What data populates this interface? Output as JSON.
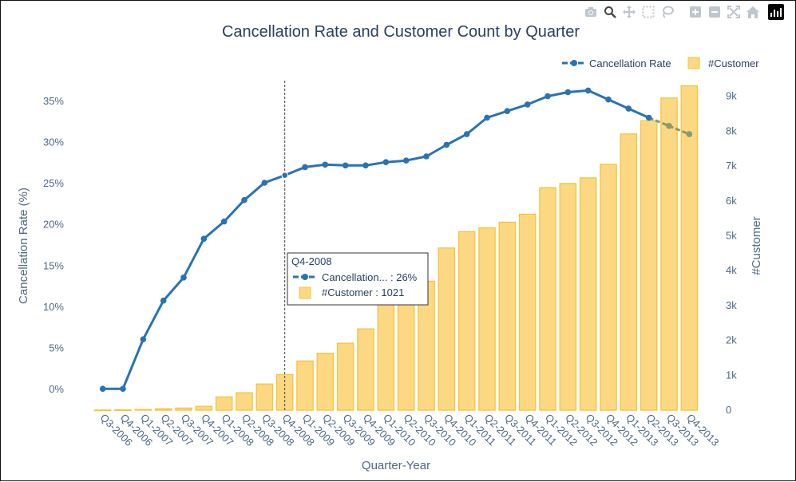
{
  "modebar": {
    "icons": [
      "camera-icon",
      "zoom-icon",
      "pan-icon",
      "box-select-icon",
      "lasso-icon",
      "zoom-in-icon",
      "zoom-out-icon",
      "autoscale-icon",
      "reset-axes-icon",
      "plotly-logo-icon"
    ]
  },
  "colors": {
    "line": "#2a72b5",
    "line_faded": "#8a9a6a",
    "bar_fill": "#fdd882",
    "bar_stroke": "#f5c43c",
    "text": "#2a3f5f",
    "axis_text": "#506784"
  },
  "chart_data": {
    "type": "bar",
    "title": "Cancellation Rate and Customer Count by Quarter",
    "xlabel": "Quarter-Year",
    "ylabel": "Cancellation Rate (%)",
    "y2label": "#Customer",
    "legend_position": "top-right",
    "grid": false,
    "categories": [
      "Q3-2006",
      "Q4-2006",
      "Q1-2007",
      "Q2-2007",
      "Q3-2007",
      "Q4-2007",
      "Q1-2008",
      "Q2-2008",
      "Q3-2008",
      "Q4-2008",
      "Q1-2009",
      "Q2-2009",
      "Q3-2009",
      "Q4-2009",
      "Q1-2010",
      "Q2-2010",
      "Q3-2010",
      "Q4-2010",
      "Q1-2011",
      "Q2-2011",
      "Q3-2011",
      "Q4-2011",
      "Q1-2012",
      "Q2-2012",
      "Q3-2012",
      "Q4-2012",
      "Q1-2013",
      "Q2-2013",
      "Q3-2013",
      "Q4-2013"
    ],
    "y_ticks": [
      "0%",
      "5%",
      "10%",
      "15%",
      "20%",
      "25%",
      "30%",
      "35%"
    ],
    "y_tick_values": [
      0,
      5,
      10,
      15,
      20,
      25,
      30,
      35
    ],
    "y2_ticks": [
      "0",
      "1k",
      "2k",
      "3k",
      "4k",
      "5k",
      "6k",
      "7k",
      "8k",
      "9k"
    ],
    "y2_tick_values": [
      0,
      1000,
      2000,
      3000,
      4000,
      5000,
      6000,
      7000,
      8000,
      9000
    ],
    "ylim": [
      -2.5,
      37.5
    ],
    "y2lim": [
      0,
      9450
    ],
    "series": [
      {
        "name": "Cancellation Rate",
        "type": "line",
        "axis": "left",
        "values": [
          0.1,
          0.1,
          6.1,
          10.8,
          13.6,
          18.3,
          20.4,
          23.0,
          25.1,
          26.0,
          27.0,
          27.3,
          27.2,
          27.2,
          27.6,
          27.8,
          28.3,
          29.7,
          31.0,
          33.0,
          33.8,
          34.6,
          35.6,
          36.1,
          36.3,
          35.2,
          34.1,
          33.0,
          32.0,
          31.0
        ],
        "faded_from_index": 28
      },
      {
        "name": "#Customer",
        "type": "bar",
        "axis": "right",
        "values": [
          5,
          10,
          20,
          40,
          60,
          110,
          380,
          500,
          750,
          1021,
          1410,
          1630,
          1920,
          2330,
          3200,
          3400,
          3700,
          4650,
          5120,
          5230,
          5390,
          5620,
          6380,
          6500,
          6660,
          7050,
          7920,
          8300,
          8950,
          9300
        ]
      }
    ],
    "hover": {
      "category": "Q4-2008",
      "line_label": "Cancellation... : 26%",
      "bar_label": "#Customer : 1021"
    }
  }
}
